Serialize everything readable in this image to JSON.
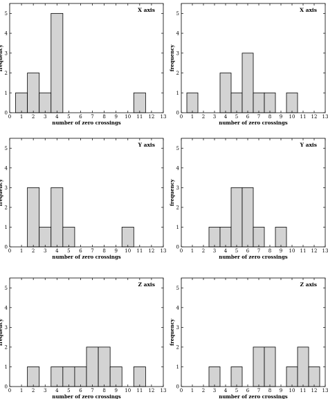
{
  "chart_data": [
    {
      "type": "bar",
      "title": "X axis",
      "xlabel": "number of zero crossings",
      "ylabel": "frequency",
      "xlim": [
        0,
        13
      ],
      "ylim": [
        0,
        5.5
      ],
      "xticks": [
        0,
        1,
        2,
        3,
        4,
        5,
        6,
        7,
        8,
        9,
        10,
        11,
        12,
        13
      ],
      "yticks": [
        0,
        1,
        2,
        3,
        4,
        5
      ],
      "bins": [
        {
          "x": 1,
          "count": 1
        },
        {
          "x": 2,
          "count": 2
        },
        {
          "x": 3,
          "count": 1
        },
        {
          "x": 4,
          "count": 5
        },
        {
          "x": 11,
          "count": 1
        }
      ]
    },
    {
      "type": "bar",
      "title": "X axis",
      "xlabel": "number of zero crossings",
      "ylabel": "frequency",
      "xlim": [
        0,
        13
      ],
      "ylim": [
        0,
        5.5
      ],
      "xticks": [
        0,
        1,
        2,
        3,
        4,
        5,
        6,
        7,
        8,
        9,
        10,
        11,
        12,
        13
      ],
      "yticks": [
        0,
        1,
        2,
        3,
        4,
        5
      ],
      "bins": [
        {
          "x": 1,
          "count": 1
        },
        {
          "x": 4,
          "count": 2
        },
        {
          "x": 5,
          "count": 1
        },
        {
          "x": 6,
          "count": 3
        },
        {
          "x": 7,
          "count": 1
        },
        {
          "x": 8,
          "count": 1
        },
        {
          "x": 10,
          "count": 1
        }
      ]
    },
    {
      "type": "bar",
      "title": "Y axis",
      "xlabel": "number of zero crossings",
      "ylabel": "frequency",
      "xlim": [
        0,
        13
      ],
      "ylim": [
        0,
        5.5
      ],
      "xticks": [
        0,
        1,
        2,
        3,
        4,
        5,
        6,
        7,
        8,
        9,
        10,
        11,
        12,
        13
      ],
      "yticks": [
        0,
        1,
        2,
        3,
        4,
        5
      ],
      "bins": [
        {
          "x": 2,
          "count": 3
        },
        {
          "x": 3,
          "count": 1
        },
        {
          "x": 4,
          "count": 3
        },
        {
          "x": 5,
          "count": 1
        },
        {
          "x": 10,
          "count": 1
        }
      ]
    },
    {
      "type": "bar",
      "title": "Y axis",
      "xlabel": "number of zero crossings",
      "ylabel": "frequency",
      "xlim": [
        0,
        13
      ],
      "ylim": [
        0,
        5.5
      ],
      "xticks": [
        0,
        1,
        2,
        3,
        4,
        5,
        6,
        7,
        8,
        9,
        10,
        11,
        12,
        13
      ],
      "yticks": [
        0,
        1,
        2,
        3,
        4,
        5
      ],
      "bins": [
        {
          "x": 3,
          "count": 1
        },
        {
          "x": 4,
          "count": 1
        },
        {
          "x": 5,
          "count": 3
        },
        {
          "x": 6,
          "count": 3
        },
        {
          "x": 7,
          "count": 1
        },
        {
          "x": 9,
          "count": 1
        }
      ]
    },
    {
      "type": "bar",
      "title": "Z axis",
      "xlabel": "number of zero crossings",
      "ylabel": "frequency",
      "xlim": [
        0,
        13
      ],
      "ylim": [
        0,
        5.5
      ],
      "xticks": [
        0,
        1,
        2,
        3,
        4,
        5,
        6,
        7,
        8,
        9,
        10,
        11,
        12,
        13
      ],
      "yticks": [
        0,
        1,
        2,
        3,
        4,
        5
      ],
      "bins": [
        {
          "x": 2,
          "count": 1
        },
        {
          "x": 4,
          "count": 1
        },
        {
          "x": 5,
          "count": 1
        },
        {
          "x": 6,
          "count": 1
        },
        {
          "x": 7,
          "count": 2
        },
        {
          "x": 8,
          "count": 2
        },
        {
          "x": 9,
          "count": 1
        },
        {
          "x": 11,
          "count": 1
        }
      ]
    },
    {
      "type": "bar",
      "title": "Z axis",
      "xlabel": "number of zero crossings",
      "ylabel": "frequency",
      "xlim": [
        0,
        13
      ],
      "ylim": [
        0,
        5.5
      ],
      "xticks": [
        0,
        1,
        2,
        3,
        4,
        5,
        6,
        7,
        8,
        9,
        10,
        11,
        12,
        13
      ],
      "yticks": [
        0,
        1,
        2,
        3,
        4,
        5
      ],
      "bins": [
        {
          "x": 3,
          "count": 1
        },
        {
          "x": 5,
          "count": 1
        },
        {
          "x": 7,
          "count": 2
        },
        {
          "x": 8,
          "count": 2
        },
        {
          "x": 10,
          "count": 1
        },
        {
          "x": 11,
          "count": 2
        },
        {
          "x": 12,
          "count": 1
        }
      ]
    }
  ]
}
